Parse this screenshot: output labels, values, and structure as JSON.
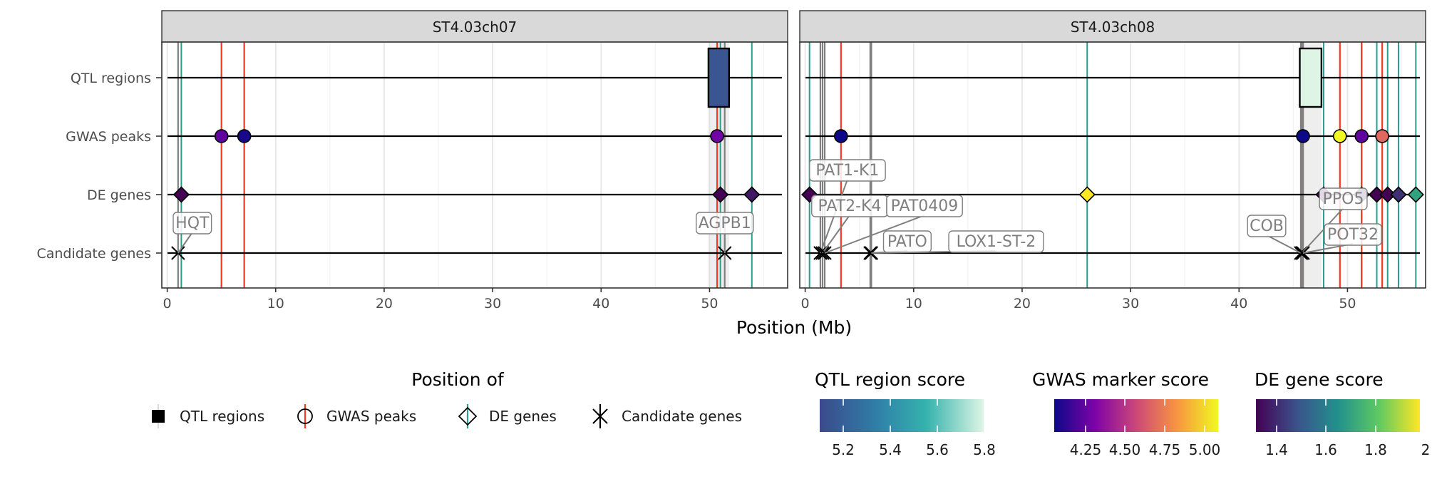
{
  "chart_data": {
    "type": "scatter",
    "xlabel": "Position (Mb)",
    "x_ticks": [
      0,
      10,
      20,
      30,
      40,
      50
    ],
    "xlim": [
      -0.5,
      57.2
    ],
    "rows": [
      "QTL regions",
      "GWAS peaks",
      "DE genes",
      "Candidate genes"
    ],
    "colors": {
      "gwas_line": "#f03b20",
      "de_line": "#2a9d8f",
      "candidate_line": "#808080",
      "qtl_band": "#d9d9d9",
      "strip_bg": "#d9d9d9"
    },
    "panels": [
      {
        "title": "ST4.03ch07",
        "qtl_regions": [
          {
            "start": 49.9,
            "end": 51.8,
            "score": 5.15
          }
        ],
        "gwas_peaks": [
          {
            "x": 5.0,
            "score": 4.35
          },
          {
            "x": 7.1,
            "score": 4.22
          },
          {
            "x": 50.7,
            "score": 4.38
          }
        ],
        "de_genes": [
          {
            "x": 1.3,
            "score": 1.3
          },
          {
            "x": 51.0,
            "score": 1.3
          },
          {
            "x": 53.9,
            "score": 1.35
          }
        ],
        "candidate_genes": [
          {
            "x": 1.0,
            "label": "HQT"
          },
          {
            "x": 51.4,
            "label": "AGPB1"
          }
        ]
      },
      {
        "title": "ST4.03ch08",
        "qtl_regions": [
          {
            "start": 45.6,
            "end": 47.6,
            "score": 5.85
          }
        ],
        "gwas_peaks": [
          {
            "x": 3.3,
            "score": 4.2
          },
          {
            "x": 45.9,
            "score": 4.2
          },
          {
            "x": 49.3,
            "score": 5.02
          },
          {
            "x": 51.3,
            "score": 4.35
          },
          {
            "x": 53.2,
            "score": 4.7
          }
        ],
        "de_genes": [
          {
            "x": 0.4,
            "score": 1.3
          },
          {
            "x": 26.0,
            "score": 2.0
          },
          {
            "x": 47.8,
            "score": 1.3
          },
          {
            "x": 51.3,
            "score": 1.35
          },
          {
            "x": 52.7,
            "score": 1.3
          },
          {
            "x": 53.7,
            "score": 1.3
          },
          {
            "x": 54.7,
            "score": 1.4
          },
          {
            "x": 56.3,
            "score": 1.7
          }
        ],
        "candidate_genes": [
          {
            "x": 1.4,
            "label": "PAT1-K1"
          },
          {
            "x": 1.6,
            "label": "PAT2-K4"
          },
          {
            "x": 1.8,
            "label": "PAT0409"
          },
          {
            "x": 6.0,
            "label": "PATO"
          },
          {
            "x": 6.1,
            "label": "LOX1-ST-2"
          },
          {
            "x": 45.7,
            "label": "COB"
          },
          {
            "x": 45.8,
            "label": "PPO5"
          },
          {
            "x": 45.9,
            "label": "POT32"
          }
        ]
      }
    ],
    "legends": {
      "position_title": "Position of",
      "position_items": [
        "QTL regions",
        "GWAS peaks",
        "DE genes",
        "Candidate genes"
      ],
      "qtl_title": "QTL region score",
      "qtl_ticks": [
        "5.2",
        "5.4",
        "5.6",
        "5.8"
      ],
      "gwas_title": "GWAS marker score",
      "gwas_ticks": [
        "4.25",
        "4.50",
        "4.75",
        "5.00"
      ],
      "de_title": "DE gene score",
      "de_ticks": [
        "1.4",
        "1.6",
        "1.8",
        "2"
      ]
    }
  }
}
